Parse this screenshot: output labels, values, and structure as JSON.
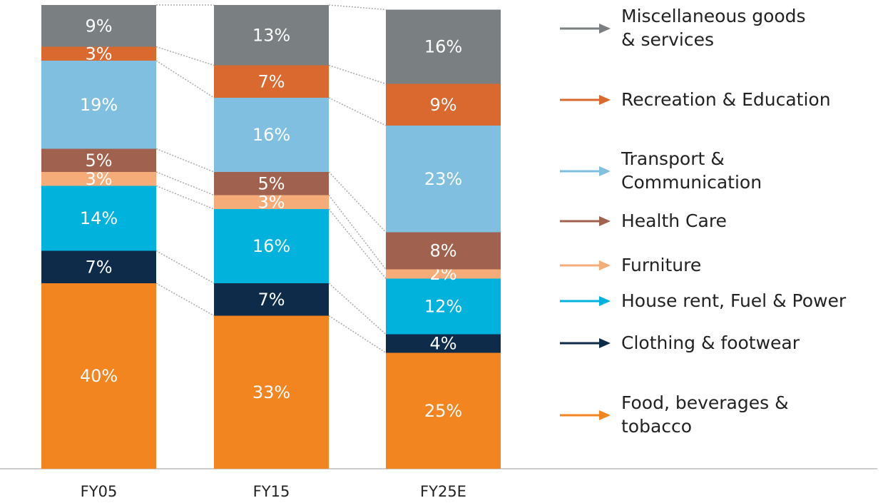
{
  "chart_data": {
    "type": "stacked_bar",
    "categories": [
      "FY05",
      "FY15",
      "FY25E"
    ],
    "ylim": [
      0,
      100
    ],
    "series": [
      {
        "name": "Food, beverages & tobacco",
        "color": "#f38520",
        "values": [
          40,
          33,
          25
        ],
        "value_labels": [
          "40%",
          "33%",
          "25%"
        ]
      },
      {
        "name": "Clothing & footwear",
        "color": "#0e2b4a",
        "values": [
          7,
          7,
          4
        ],
        "value_labels": [
          "7%",
          "7%",
          "4%"
        ]
      },
      {
        "name": "House rent, Fuel & Power",
        "color": "#00b2dc",
        "values": [
          14,
          16,
          12
        ],
        "value_labels": [
          "14%",
          "16%",
          "12%"
        ]
      },
      {
        "name": "Furniture",
        "color": "#f6ac78",
        "values": [
          3,
          3,
          2
        ],
        "value_labels": [
          "3%",
          "3%",
          "2%"
        ]
      },
      {
        "name": "Health Care",
        "color": "#a0624f",
        "values": [
          5,
          5,
          8
        ],
        "value_labels": [
          "5%",
          "5%",
          "8%"
        ]
      },
      {
        "name": "Transport & Communication",
        "color": "#80bfe0",
        "values": [
          19,
          16,
          23
        ],
        "value_labels": [
          "19%",
          "16%",
          "23%"
        ]
      },
      {
        "name": "Recreation & Education",
        "color": "#d9692e",
        "values": [
          3,
          7,
          9
        ],
        "value_labels": [
          "3%",
          "7%",
          "9%"
        ]
      },
      {
        "name": "Miscellaneous goods & services",
        "color": "#7a7f82",
        "values": [
          9,
          13,
          16
        ],
        "value_labels": [
          "9%",
          "13%",
          "16%"
        ]
      }
    ]
  }
}
